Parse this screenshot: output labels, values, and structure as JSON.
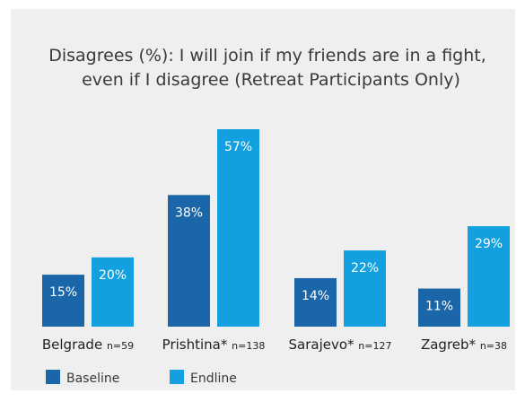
{
  "chart_data": {
    "type": "bar",
    "title_lines": [
      "Disagrees (%): I will join if my friends are in a fight,",
      "even if I disagree (Retreat Participants Only)"
    ],
    "categories": [
      "Belgrade",
      "Prishtina*",
      "Sarajevo*",
      "Zagreb*"
    ],
    "category_counts": [
      "n=59",
      "n=138",
      "n=127",
      "n=38"
    ],
    "series": [
      {
        "name": "Baseline",
        "values": [
          15,
          38,
          14,
          11
        ],
        "labels": [
          "15%",
          "38%",
          "14%",
          "11%"
        ],
        "color": "#1a66a8"
      },
      {
        "name": "Endline",
        "values": [
          20,
          57,
          22,
          29
        ],
        "labels": [
          "20%",
          "57%",
          "22%",
          "29%"
        ],
        "color": "#12a0e0"
      }
    ],
    "ylim": [
      0,
      57
    ],
    "grid": false,
    "legend_position": "bottom-left"
  }
}
